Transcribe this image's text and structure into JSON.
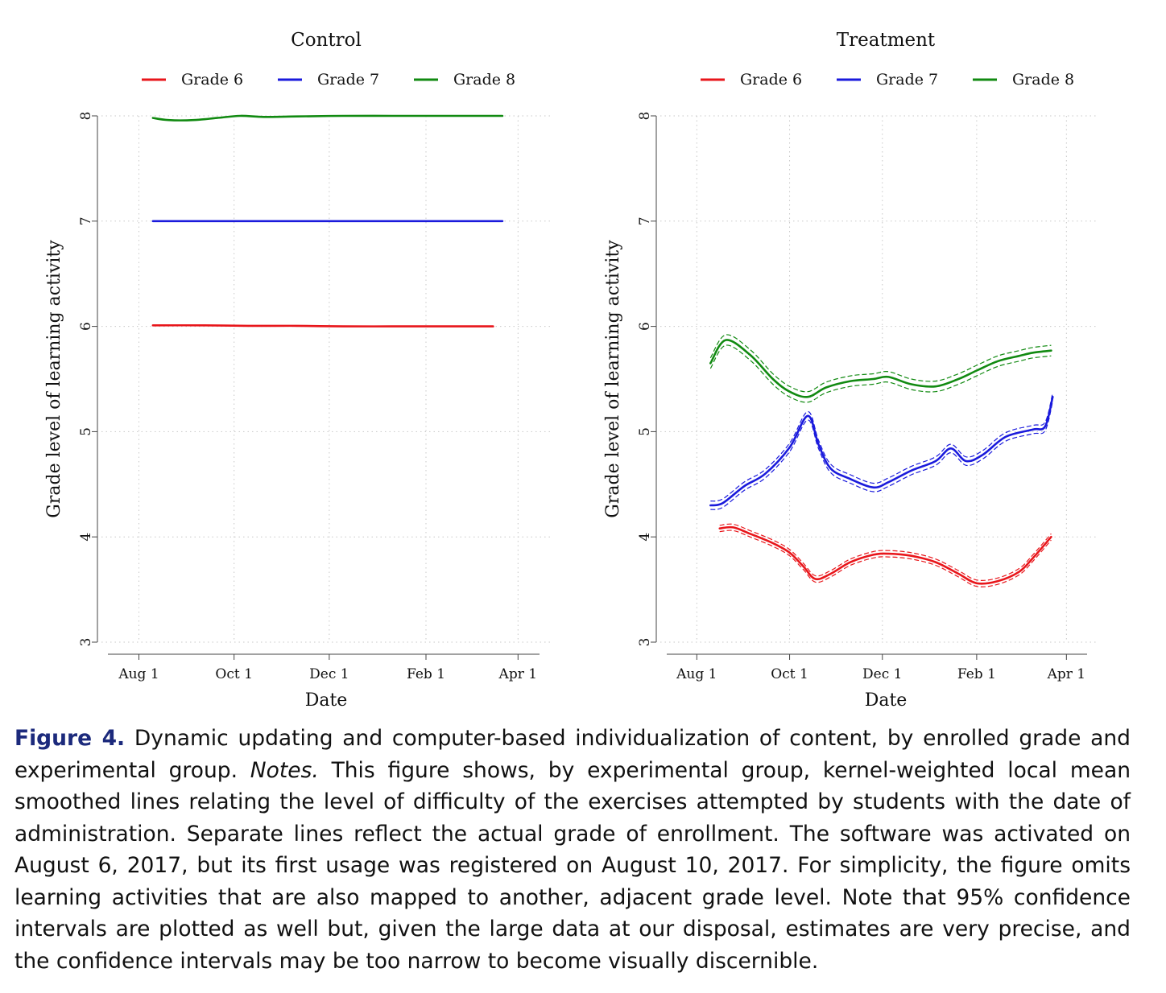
{
  "caption": {
    "label": "Figure 4.",
    "lead": " Dynamic updating and computer-based individualization of content, by enrolled grade and experimental group. ",
    "notes_label": "Notes.",
    "body": " This figure shows, by experimental group, kernel-weighted local mean smoothed lines relating the level of difficulty of the exercises attempted by students with the date of administration. Separate lines reflect the actual grade of enrollment. The software was activated on August 6, 2017, but its first usage was registered on August 10, 2017. For simplicity, the figure omits learning activities that are also mapped to another, adjacent grade level. Note that 95% confidence intervals are plotted as well but, given the large data at our disposal, estimates are very precise, and the confidence intervals may be too narrow to become visually discernible."
  },
  "colors": {
    "Grade 6": "#e8161b",
    "Grade 7": "#1a1adc",
    "Grade 8": "#118a11"
  },
  "chart_data": [
    {
      "type": "line",
      "title": "Control",
      "xlabel": "Date",
      "ylabel": "Grade level of learning activity",
      "ylim": [
        3,
        8
      ],
      "xlim": [
        "2017-07-08",
        "2018-04-22"
      ],
      "yticks": [
        3,
        4,
        5,
        6,
        7,
        8
      ],
      "xticks": [
        {
          "label": "Aug 1",
          "date": "2017-08-01"
        },
        {
          "label": "Oct 1",
          "date": "2017-10-01"
        },
        {
          "label": "Dec 1",
          "date": "2017-12-01"
        },
        {
          "label": "Feb 1",
          "date": "2018-02-01"
        },
        {
          "label": "Apr 1",
          "date": "2018-04-01"
        }
      ],
      "grid": true,
      "legend": "top",
      "confidence_band": false,
      "series": [
        {
          "name": "Grade 6",
          "x": [
            "2017-08-10",
            "2017-09-10",
            "2017-10-10",
            "2017-11-10",
            "2017-12-10",
            "2018-01-10",
            "2018-02-10",
            "2018-03-16"
          ],
          "y": [
            6.01,
            6.01,
            6.005,
            6.005,
            6.0,
            6.0,
            6.0,
            6.0
          ]
        },
        {
          "name": "Grade 7",
          "x": [
            "2017-08-10",
            "2017-09-10",
            "2017-10-10",
            "2017-11-10",
            "2017-12-10",
            "2018-01-10",
            "2018-02-10",
            "2018-03-22"
          ],
          "y": [
            7.0,
            7.0,
            7.0,
            7.0,
            7.0,
            7.0,
            7.0,
            7.0
          ]
        },
        {
          "name": "Grade 8",
          "x": [
            "2017-08-10",
            "2017-08-20",
            "2017-09-05",
            "2017-09-20",
            "2017-10-05",
            "2017-10-20",
            "2017-11-10",
            "2017-12-10",
            "2018-01-10",
            "2018-02-10",
            "2018-03-22"
          ],
          "y": [
            7.98,
            7.96,
            7.96,
            7.98,
            8.0,
            7.99,
            7.995,
            8.0,
            8.0,
            8.0,
            8.0
          ]
        }
      ]
    },
    {
      "type": "line",
      "title": "Treatment",
      "xlabel": "Date",
      "ylabel": "Grade level of learning activity",
      "ylim": [
        3,
        8
      ],
      "xlim": [
        "2017-07-08",
        "2018-04-22"
      ],
      "yticks": [
        3,
        4,
        5,
        6,
        7,
        8
      ],
      "xticks": [
        {
          "label": "Aug 1",
          "date": "2017-08-01"
        },
        {
          "label": "Oct 1",
          "date": "2017-10-01"
        },
        {
          "label": "Dec 1",
          "date": "2017-12-01"
        },
        {
          "label": "Feb 1",
          "date": "2018-02-01"
        },
        {
          "label": "Apr 1",
          "date": "2018-04-01"
        }
      ],
      "grid": true,
      "legend": "top",
      "confidence_band": true,
      "series": [
        {
          "name": "Grade 6",
          "x": [
            "2017-08-16",
            "2017-08-25",
            "2017-09-05",
            "2017-09-20",
            "2017-10-01",
            "2017-10-10",
            "2017-10-18",
            "2017-10-28",
            "2017-11-10",
            "2017-11-25",
            "2017-12-05",
            "2017-12-20",
            "2018-01-05",
            "2018-01-20",
            "2018-02-01",
            "2018-02-15",
            "2018-03-01",
            "2018-03-10",
            "2018-03-22"
          ],
          "y": [
            4.08,
            4.09,
            4.03,
            3.94,
            3.85,
            3.72,
            3.6,
            3.65,
            3.76,
            3.83,
            3.84,
            3.82,
            3.76,
            3.65,
            3.56,
            3.58,
            3.67,
            3.8,
            4.0
          ],
          "ci": 0.03
        },
        {
          "name": "Grade 7",
          "x": [
            "2017-08-10",
            "2017-08-18",
            "2017-09-01",
            "2017-09-15",
            "2017-10-01",
            "2017-10-13",
            "2017-10-20",
            "2017-10-28",
            "2017-11-10",
            "2017-11-25",
            "2017-12-05",
            "2017-12-20",
            "2018-01-05",
            "2018-01-15",
            "2018-01-25",
            "2018-02-05",
            "2018-02-20",
            "2018-03-10",
            "2018-03-18",
            "2018-03-23"
          ],
          "y": [
            4.3,
            4.32,
            4.48,
            4.6,
            4.85,
            5.15,
            4.88,
            4.65,
            4.55,
            4.47,
            4.52,
            4.63,
            4.72,
            4.84,
            4.72,
            4.78,
            4.95,
            5.02,
            5.05,
            5.33
          ],
          "ci": 0.04
        },
        {
          "name": "Grade 8",
          "x": [
            "2017-08-10",
            "2017-08-20",
            "2017-09-05",
            "2017-09-20",
            "2017-10-01",
            "2017-10-13",
            "2017-10-25",
            "2017-11-10",
            "2017-11-25",
            "2017-12-05",
            "2017-12-20",
            "2018-01-05",
            "2018-01-20",
            "2018-02-01",
            "2018-02-15",
            "2018-03-01",
            "2018-03-10",
            "2018-03-22"
          ],
          "y": [
            5.65,
            5.87,
            5.73,
            5.5,
            5.38,
            5.33,
            5.42,
            5.48,
            5.5,
            5.52,
            5.45,
            5.43,
            5.5,
            5.58,
            5.67,
            5.72,
            5.75,
            5.77
          ],
          "ci": 0.05
        }
      ]
    }
  ]
}
